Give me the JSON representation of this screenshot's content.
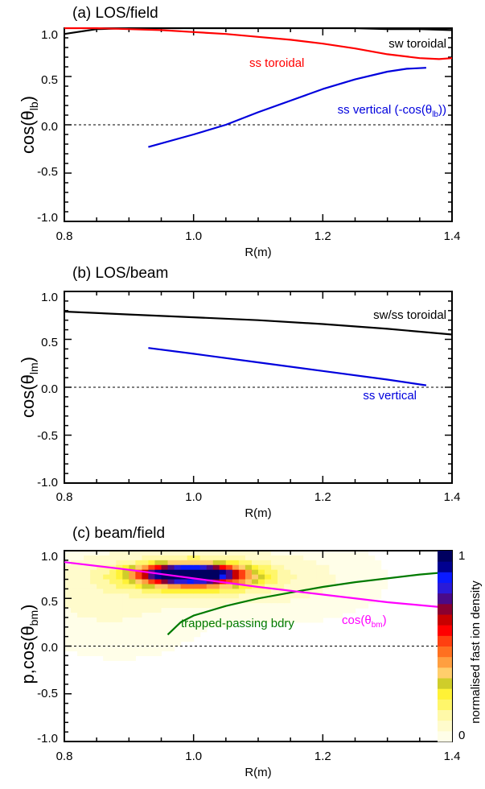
{
  "chart_data": [
    {
      "type": "line",
      "title": "(a) LOS/field",
      "xlabel": "R(m)",
      "ylabel": "cos(θ",
      "ylabel_sub": "lb",
      "ylabel_end": ")",
      "xlim": [
        0.8,
        1.4
      ],
      "ylim": [
        -1.0,
        1.0
      ],
      "xticks": [
        "0.8",
        "1.0",
        "1.2",
        "1.4"
      ],
      "yticks": [
        "-1.0",
        "-0.5",
        "0.0",
        "0.5",
        "1.0"
      ],
      "zero_line": true,
      "series": [
        {
          "name": "sw toroidal",
          "color": "#000000",
          "x": [
            0.8,
            0.85,
            0.9,
            0.95,
            1.0,
            1.05,
            1.1,
            1.15,
            1.2,
            1.25,
            1.3,
            1.35,
            1.4
          ],
          "y": [
            0.94,
            0.99,
            1.0,
            1.0,
            1.0,
            1.0,
            1.0,
            1.0,
            1.0,
            1.0,
            0.99,
            0.99,
            0.98
          ]
        },
        {
          "name": "ss toroidal",
          "color": "#ff0000",
          "x": [
            0.8,
            0.85,
            0.9,
            0.95,
            1.0,
            1.05,
            1.1,
            1.15,
            1.2,
            1.25,
            1.3,
            1.35,
            1.38,
            1.4
          ],
          "y": [
            1.0,
            1.0,
            0.99,
            0.98,
            0.96,
            0.94,
            0.91,
            0.88,
            0.84,
            0.79,
            0.73,
            0.69,
            0.68,
            0.69
          ]
        },
        {
          "name": "ss vertical (-cos(θ",
          "name_sub": "lb",
          "name_end": "))",
          "color": "#0000dd",
          "x": [
            0.93,
            1.0,
            1.05,
            1.1,
            1.15,
            1.2,
            1.25,
            1.3,
            1.33,
            1.36
          ],
          "y": [
            -0.23,
            -0.1,
            0.0,
            0.13,
            0.25,
            0.37,
            0.47,
            0.55,
            0.58,
            0.59
          ]
        }
      ]
    },
    {
      "type": "line",
      "title": "(b) LOS/beam",
      "xlabel": "R(m)",
      "ylabel": "cos(θ",
      "ylabel_sub": "lm",
      "ylabel_end": ")",
      "xlim": [
        0.8,
        1.4
      ],
      "ylim": [
        -1.0,
        1.0
      ],
      "xticks": [
        "0.8",
        "1.0",
        "1.2",
        "1.4"
      ],
      "yticks": [
        "-1.0",
        "-0.5",
        "0.0",
        "0.5",
        "1.0"
      ],
      "zero_line": true,
      "series": [
        {
          "name": "sw/ss toroidal",
          "color": "#000000",
          "x": [
            0.8,
            0.9,
            1.0,
            1.1,
            1.2,
            1.3,
            1.4
          ],
          "y": [
            0.79,
            0.76,
            0.73,
            0.7,
            0.66,
            0.61,
            0.55
          ]
        },
        {
          "name": "ss vertical",
          "color": "#0000dd",
          "x": [
            0.93,
            1.0,
            1.1,
            1.2,
            1.3,
            1.36
          ],
          "y": [
            0.41,
            0.35,
            0.26,
            0.17,
            0.08,
            0.02
          ]
        }
      ]
    },
    {
      "type": "heatmap",
      "title": "(c) beam/field",
      "xlabel": "R(m)",
      "ylabel": "p,cos(θ",
      "ylabel_sub": "bm",
      "ylabel_end": ")",
      "xlim": [
        0.8,
        1.4
      ],
      "ylim": [
        -1.0,
        1.0
      ],
      "xticks": [
        "0.8",
        "1.0",
        "1.2",
        "1.4"
      ],
      "yticks": [
        "-1.0",
        "-0.5",
        "0.0",
        "0.5",
        "1.0"
      ],
      "zero_line": true,
      "colorbar": {
        "label": "normalised fast ion density",
        "min_label": "0",
        "max_label": "1",
        "colors": [
          "#fffee8",
          "#fffbcc",
          "#fff9a8",
          "#fff66a",
          "#fff236",
          "#cfcd2a",
          "#ffce6c",
          "#ff9f40",
          "#ff7020",
          "#ff4010",
          "#ff0000",
          "#c80000",
          "#8a0030",
          "#4a0a88",
          "#2a1ad8",
          "#0a1aff",
          "#000090",
          "#000060"
        ]
      },
      "density_blobs": [
        {
          "x": 1.0,
          "y": 0.72,
          "sx": 0.085,
          "sy": 0.15,
          "amp": 0.18
        },
        {
          "x": 1.0,
          "y": 0.74,
          "sx": 0.06,
          "sy": 0.09,
          "amp": 0.55
        },
        {
          "x": 0.99,
          "y": 0.76,
          "sx": 0.045,
          "sy": 0.055,
          "amp": 0.7
        },
        {
          "x": 0.85,
          "y": 0.65,
          "sx": 0.08,
          "sy": 0.35,
          "amp": 0.06
        },
        {
          "x": 1.15,
          "y": 0.7,
          "sx": 0.1,
          "sy": 0.3,
          "amp": 0.06
        },
        {
          "x": 0.9,
          "y": 0.2,
          "sx": 0.1,
          "sy": 0.35,
          "amp": 0.025
        }
      ],
      "series": [
        {
          "name": "trapped-passing bdry",
          "color": "#007a00",
          "x": [
            0.96,
            0.98,
            1.0,
            1.05,
            1.1,
            1.15,
            1.2,
            1.25,
            1.3,
            1.35,
            1.4
          ],
          "y": [
            0.12,
            0.25,
            0.32,
            0.42,
            0.5,
            0.56,
            0.62,
            0.67,
            0.71,
            0.75,
            0.78
          ]
        },
        {
          "name": "cos(θ",
          "name_sub": "bm",
          "name_end": ")",
          "color": "#ff00ff",
          "x": [
            0.8,
            0.9,
            1.0,
            1.1,
            1.2,
            1.3,
            1.38
          ],
          "y": [
            0.88,
            0.8,
            0.71,
            0.62,
            0.54,
            0.46,
            0.41
          ]
        }
      ]
    }
  ]
}
